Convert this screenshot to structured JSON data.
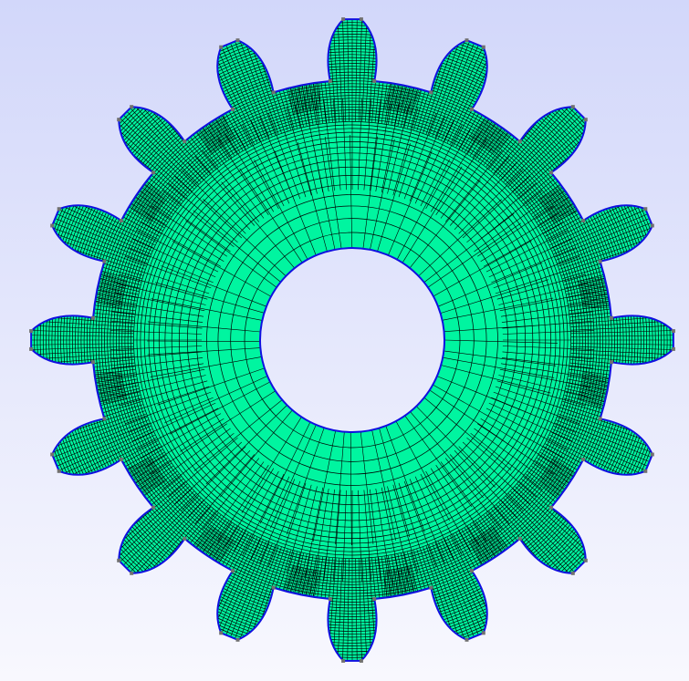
{
  "viewport": {
    "background_top_color": "#d2d7fa",
    "background_bottom_color": "#f8f8fe"
  },
  "gear": {
    "teeth_count": 16,
    "mesh_fill_color": "#00f5a0",
    "mesh_line_color": "#000000",
    "boundary_color": "#1010e0",
    "node_marker_color": "#707070"
  }
}
